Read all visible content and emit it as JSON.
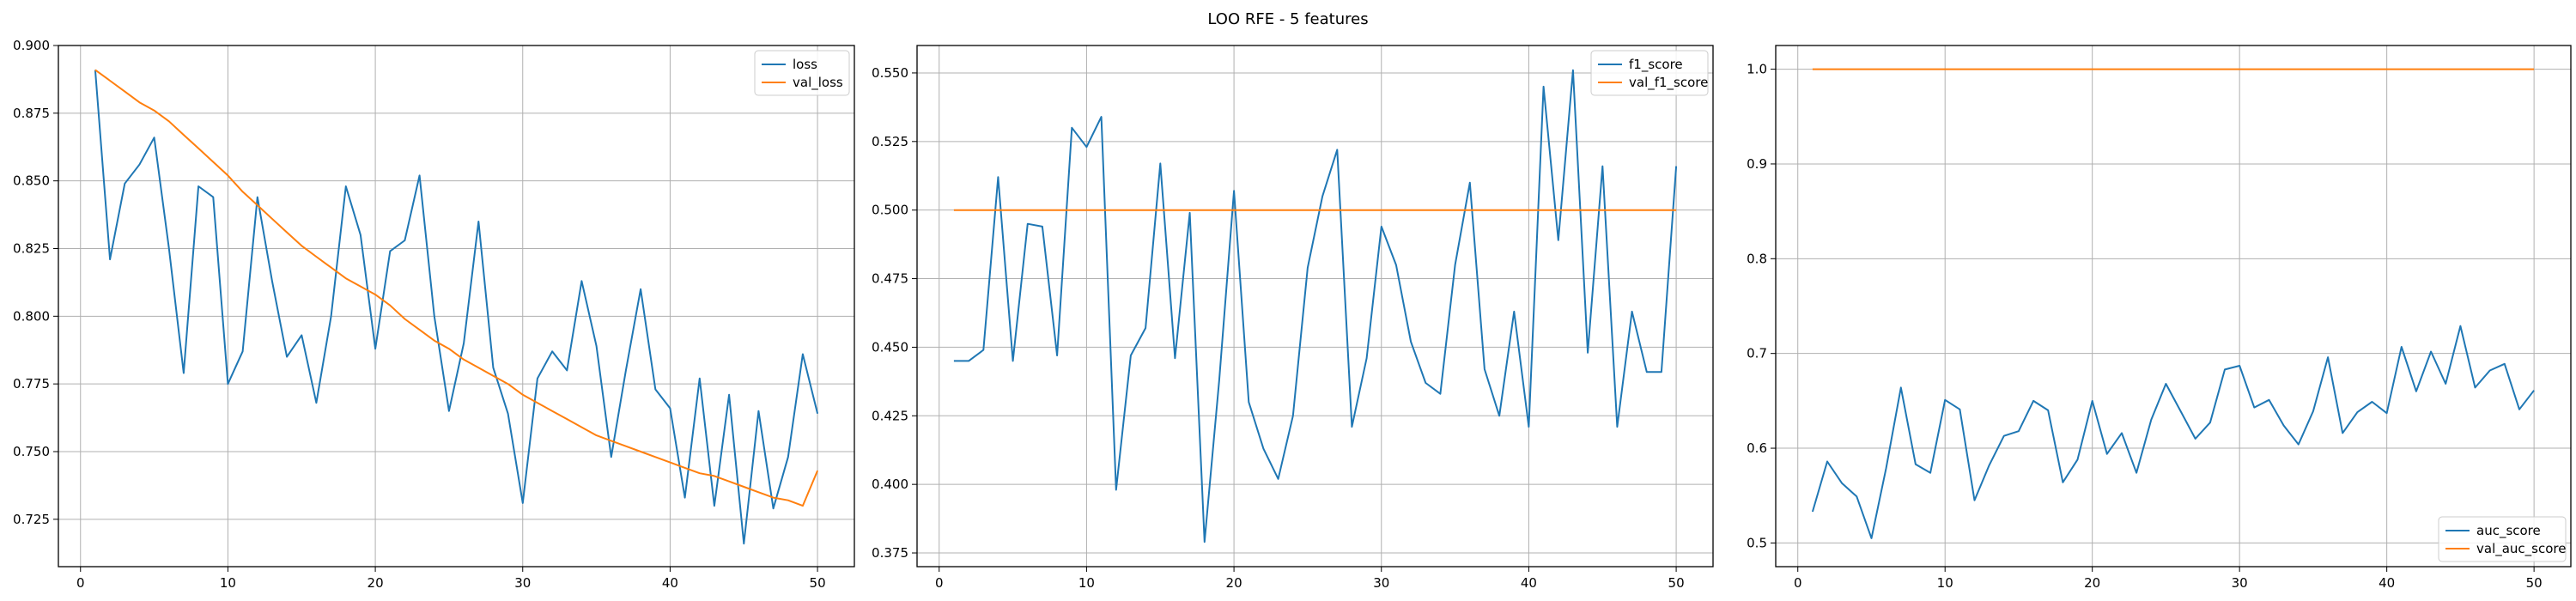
{
  "figure": {
    "title": "LOO RFE - 5 features"
  },
  "chart_data": [
    {
      "type": "line",
      "grid": true,
      "legend_position": "upper right",
      "xlim": [
        -1.5,
        52.5
      ],
      "ylim": [
        0.7075,
        0.9
      ],
      "xticks": [
        0,
        10,
        20,
        30,
        40,
        50
      ],
      "yticks": [
        0.725,
        0.75,
        0.775,
        0.8,
        0.825,
        0.85,
        0.875,
        0.9
      ],
      "ytick_labels": [
        "0.725",
        "0.750",
        "0.775",
        "0.800",
        "0.825",
        "0.850",
        "0.875",
        "0.900"
      ],
      "x": [
        1,
        2,
        3,
        4,
        5,
        6,
        7,
        8,
        9,
        10,
        11,
        12,
        13,
        14,
        15,
        16,
        17,
        18,
        19,
        20,
        21,
        22,
        23,
        24,
        25,
        26,
        27,
        28,
        29,
        30,
        31,
        32,
        33,
        34,
        35,
        36,
        37,
        38,
        39,
        40,
        41,
        42,
        43,
        44,
        45,
        46,
        47,
        48,
        49,
        50
      ],
      "series": [
        {
          "name": "loss",
          "color": "#1f77b4",
          "values": [
            0.891,
            0.821,
            0.849,
            0.856,
            0.866,
            0.825,
            0.779,
            0.848,
            0.844,
            0.775,
            0.787,
            0.844,
            0.813,
            0.785,
            0.793,
            0.768,
            0.8,
            0.848,
            0.83,
            0.788,
            0.824,
            0.828,
            0.852,
            0.8,
            0.765,
            0.79,
            0.835,
            0.781,
            0.764,
            0.731,
            0.777,
            0.787,
            0.78,
            0.813,
            0.789,
            0.748,
            0.78,
            0.81,
            0.773,
            0.766,
            0.733,
            0.777,
            0.73,
            0.771,
            0.716,
            0.765,
            0.729,
            0.748,
            0.786,
            0.764
          ]
        },
        {
          "name": "val_loss",
          "color": "#ff7f0e",
          "values": [
            0.891,
            0.887,
            0.883,
            0.879,
            0.876,
            0.872,
            0.867,
            0.862,
            0.857,
            0.852,
            0.846,
            0.841,
            0.836,
            0.831,
            0.826,
            0.822,
            0.818,
            0.814,
            0.811,
            0.808,
            0.804,
            0.799,
            0.795,
            0.791,
            0.788,
            0.784,
            0.781,
            0.778,
            0.775,
            0.771,
            0.768,
            0.765,
            0.762,
            0.759,
            0.756,
            0.754,
            0.752,
            0.75,
            0.748,
            0.746,
            0.744,
            0.742,
            0.741,
            0.739,
            0.737,
            0.735,
            0.733,
            0.732,
            0.73,
            0.743
          ]
        }
      ]
    },
    {
      "type": "line",
      "grid": true,
      "legend_position": "upper right",
      "xlim": [
        -1.5,
        52.5
      ],
      "ylim": [
        0.37,
        0.56
      ],
      "xticks": [
        0,
        10,
        20,
        30,
        40,
        50
      ],
      "yticks": [
        0.375,
        0.4,
        0.425,
        0.45,
        0.475,
        0.5,
        0.525,
        0.55
      ],
      "ytick_labels": [
        "0.375",
        "0.400",
        "0.425",
        "0.450",
        "0.475",
        "0.500",
        "0.525",
        "0.550"
      ],
      "x": [
        1,
        2,
        3,
        4,
        5,
        6,
        7,
        8,
        9,
        10,
        11,
        12,
        13,
        14,
        15,
        16,
        17,
        18,
        19,
        20,
        21,
        22,
        23,
        24,
        25,
        26,
        27,
        28,
        29,
        30,
        31,
        32,
        33,
        34,
        35,
        36,
        37,
        38,
        39,
        40,
        41,
        42,
        43,
        44,
        45,
        46,
        47,
        48,
        49,
        50
      ],
      "series": [
        {
          "name": "f1_score",
          "color": "#1f77b4",
          "values": [
            0.445,
            0.445,
            0.449,
            0.512,
            0.445,
            0.495,
            0.494,
            0.447,
            0.53,
            0.523,
            0.534,
            0.398,
            0.447,
            0.457,
            0.517,
            0.446,
            0.499,
            0.379,
            0.438,
            0.507,
            0.43,
            0.413,
            0.402,
            0.425,
            0.479,
            0.505,
            0.522,
            0.421,
            0.446,
            0.494,
            0.48,
            0.452,
            0.437,
            0.433,
            0.48,
            0.51,
            0.442,
            0.425,
            0.463,
            0.421,
            0.545,
            0.489,
            0.551,
            0.448,
            0.516,
            0.421,
            0.463,
            0.441,
            0.441,
            0.516
          ]
        },
        {
          "name": "val_f1_score",
          "color": "#ff7f0e",
          "values": [
            0.5,
            0.5,
            0.5,
            0.5,
            0.5,
            0.5,
            0.5,
            0.5,
            0.5,
            0.5,
            0.5,
            0.5,
            0.5,
            0.5,
            0.5,
            0.5,
            0.5,
            0.5,
            0.5,
            0.5,
            0.5,
            0.5,
            0.5,
            0.5,
            0.5,
            0.5,
            0.5,
            0.5,
            0.5,
            0.5,
            0.5,
            0.5,
            0.5,
            0.5,
            0.5,
            0.5,
            0.5,
            0.5,
            0.5,
            0.5,
            0.5,
            0.5,
            0.5,
            0.5,
            0.5,
            0.5,
            0.5,
            0.5,
            0.5,
            0.5
          ]
        }
      ]
    },
    {
      "type": "line",
      "grid": true,
      "legend_position": "lower right",
      "xlim": [
        -1.5,
        52.5
      ],
      "ylim": [
        0.475,
        1.025
      ],
      "xticks": [
        0,
        10,
        20,
        30,
        40,
        50
      ],
      "yticks": [
        0.5,
        0.6,
        0.7,
        0.8,
        0.9,
        1.0
      ],
      "ytick_labels": [
        "0.5",
        "0.6",
        "0.7",
        "0.8",
        "0.9",
        "1.0"
      ],
      "x": [
        1,
        2,
        3,
        4,
        5,
        6,
        7,
        8,
        9,
        10,
        11,
        12,
        13,
        14,
        15,
        16,
        17,
        18,
        19,
        20,
        21,
        22,
        23,
        24,
        25,
        26,
        27,
        28,
        29,
        30,
        31,
        32,
        33,
        34,
        35,
        36,
        37,
        38,
        39,
        40,
        41,
        42,
        43,
        44,
        45,
        46,
        47,
        48,
        49,
        50
      ],
      "series": [
        {
          "name": "auc_score",
          "color": "#1f77b4",
          "values": [
            0.533,
            0.586,
            0.563,
            0.549,
            0.505,
            0.579,
            0.664,
            0.583,
            0.574,
            0.651,
            0.641,
            0.545,
            0.582,
            0.613,
            0.618,
            0.65,
            0.64,
            0.564,
            0.588,
            0.65,
            0.594,
            0.616,
            0.574,
            0.63,
            0.668,
            0.639,
            0.61,
            0.627,
            0.683,
            0.687,
            0.643,
            0.651,
            0.624,
            0.604,
            0.639,
            0.696,
            0.616,
            0.638,
            0.649,
            0.637,
            0.707,
            0.66,
            0.702,
            0.668,
            0.729,
            0.664,
            0.682,
            0.689,
            0.641,
            0.661
          ]
        },
        {
          "name": "val_auc_score",
          "color": "#ff7f0e",
          "values": [
            1.0,
            1.0,
            1.0,
            1.0,
            1.0,
            1.0,
            1.0,
            1.0,
            1.0,
            1.0,
            1.0,
            1.0,
            1.0,
            1.0,
            1.0,
            1.0,
            1.0,
            1.0,
            1.0,
            1.0,
            1.0,
            1.0,
            1.0,
            1.0,
            1.0,
            1.0,
            1.0,
            1.0,
            1.0,
            1.0,
            1.0,
            1.0,
            1.0,
            1.0,
            1.0,
            1.0,
            1.0,
            1.0,
            1.0,
            1.0,
            1.0,
            1.0,
            1.0,
            1.0,
            1.0,
            1.0,
            1.0,
            1.0,
            1.0,
            1.0
          ]
        }
      ]
    }
  ]
}
